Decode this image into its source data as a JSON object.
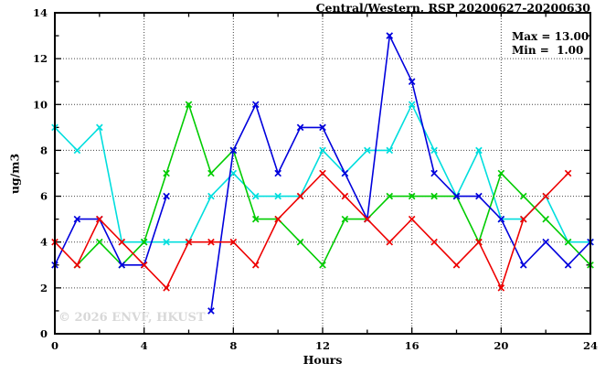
{
  "title": "Central/Western, RSP 20200627-20200630",
  "stats": {
    "max_line": "Max = 13.00",
    "min_line": "Min =  1.00"
  },
  "watermark": "© 2026 ENVF, HKUST",
  "axes": {
    "xlabel": "Hours",
    "ylabel": "ug/m3"
  },
  "chart_data": {
    "type": "line",
    "title": "Central/Western, RSP 20200627-20200630",
    "xlabel": "Hours",
    "ylabel": "ug/m3",
    "xlim": [
      0,
      24
    ],
    "ylim": [
      0,
      14
    ],
    "x_tick_labels": [
      "0",
      "4",
      "8",
      "12",
      "16",
      "20",
      "24"
    ],
    "x_major_ticks": [
      0,
      4,
      8,
      12,
      16,
      20,
      24
    ],
    "x_minor_ticks": [
      2,
      6,
      10,
      14,
      18,
      22
    ],
    "y_tick_labels": [
      "0",
      "2",
      "4",
      "6",
      "8",
      "10",
      "12",
      "14"
    ],
    "y_major_ticks": [
      0,
      2,
      4,
      6,
      8,
      10,
      12,
      14
    ],
    "y_minor_ticks": [
      1,
      3,
      5,
      7,
      9,
      11,
      13
    ],
    "grid_vertical_hours": [
      4,
      8,
      12,
      16,
      20
    ],
    "grid_horizontal_values": [
      2,
      4,
      6,
      8,
      10,
      12
    ],
    "grid_on": true,
    "legend": "none",
    "marker": "x-cross",
    "x_hours": [
      0,
      1,
      2,
      3,
      4,
      5,
      6,
      7,
      8,
      9,
      10,
      11,
      12,
      13,
      14,
      15,
      16,
      17,
      18,
      19,
      20,
      21,
      22,
      23,
      24
    ],
    "series": [
      {
        "name": "cyan-line",
        "color": "#00dede",
        "values": [
          9,
          8,
          9,
          4,
          4,
          4,
          4,
          6,
          7,
          6,
          6,
          6,
          8,
          7,
          8,
          8,
          10,
          8,
          6,
          8,
          5,
          5,
          6,
          4,
          4
        ]
      },
      {
        "name": "green-line",
        "color": "#00cc00",
        "values": [
          null,
          3,
          4,
          3,
          4,
          7,
          10,
          7,
          8,
          5,
          5,
          4,
          3,
          5,
          5,
          6,
          6,
          6,
          6,
          4,
          7,
          6,
          5,
          4,
          3
        ]
      },
      {
        "name": "blue-line",
        "color": "#0000dd",
        "values": [
          3,
          5,
          5,
          3,
          3,
          6,
          null,
          1,
          8,
          10,
          7,
          9,
          9,
          7,
          5,
          13,
          11,
          7,
          6,
          6,
          5,
          3,
          4,
          3,
          4
        ]
      },
      {
        "name": "red-line",
        "color": "#ee0000",
        "values": [
          4,
          3,
          5,
          4,
          3,
          2,
          4,
          4,
          4,
          3,
          5,
          6,
          7,
          6,
          5,
          4,
          5,
          4,
          3,
          4,
          2,
          5,
          6,
          7,
          null
        ]
      }
    ],
    "stats_max": 13.0,
    "stats_min": 1.0
  }
}
